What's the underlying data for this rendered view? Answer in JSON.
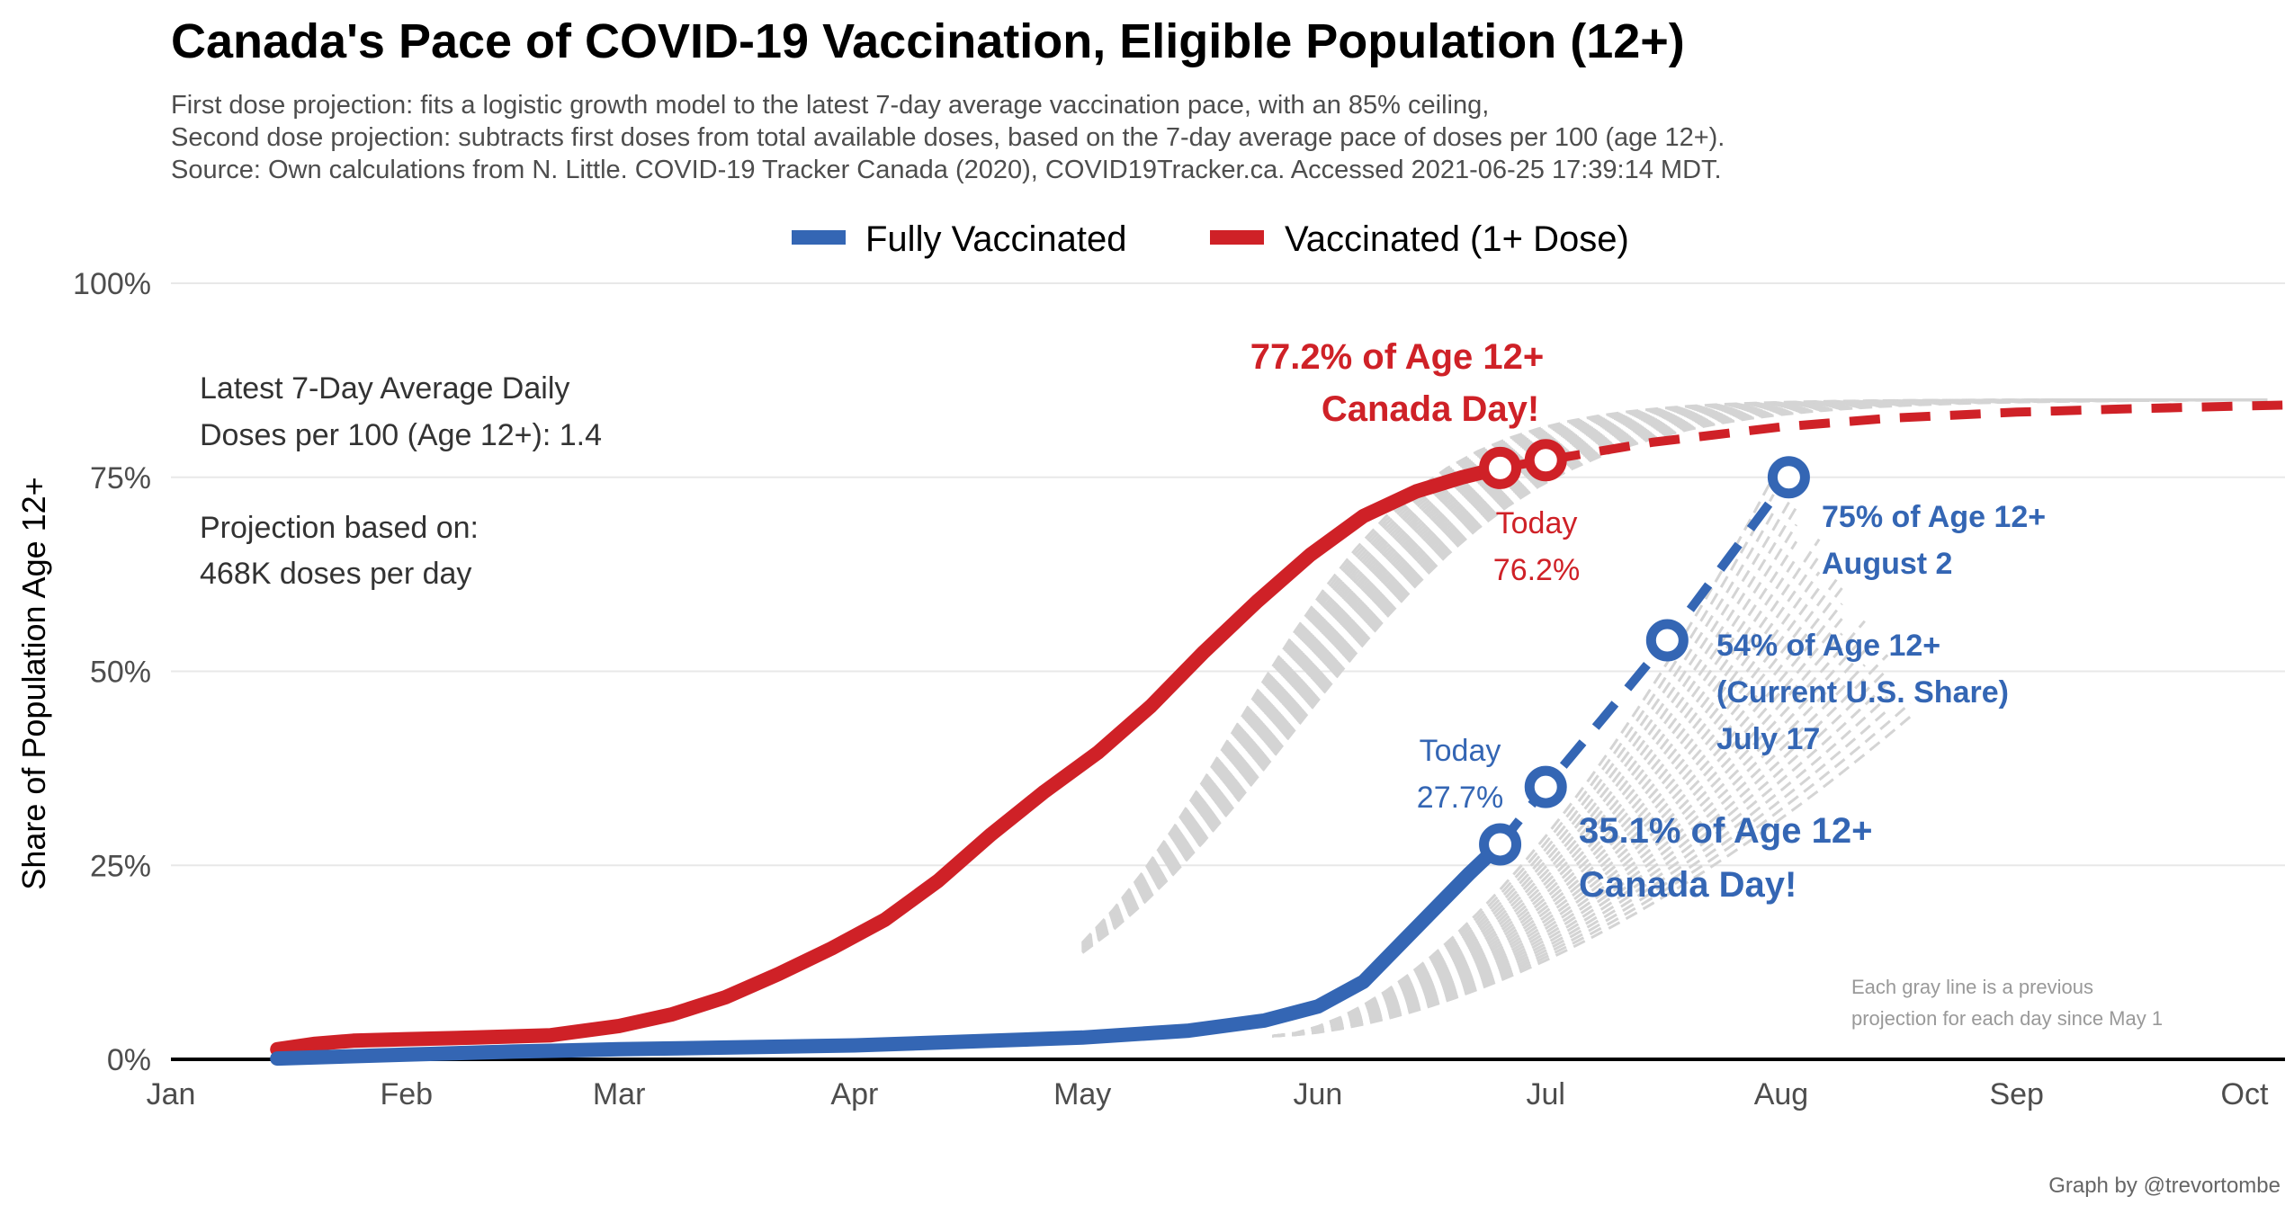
{
  "title": "Canada's Pace of COVID-19 Vaccination, Eligible Population (12+)",
  "subtitle": [
    "First dose projection: fits a logistic growth model to the latest 7-day average vaccination pace, with an 85% ceiling,",
    "Second dose projection: subtracts first doses from total available doses, based on the 7-day average pace of doses per 100 (age 12+).",
    "Source: Own calculations from N. Little. COVID-19 Tracker Canada (2020), COVID19Tracker.ca. Accessed 2021-06-25 17:39:14 MDT."
  ],
  "legend": {
    "fully": "Fully Vaccinated",
    "one_dose": "Vaccinated (1+ Dose)"
  },
  "colors": {
    "fully": "#3466b4",
    "one_dose": "#cf2127",
    "gray": "#d4d4d4",
    "grid": "#e8e8e8"
  },
  "annotations": {
    "daily_line1": "Latest 7-Day Average Daily",
    "daily_line2": "Doses per 100 (Age 12+): 1.4",
    "proj_line1": "Projection based on:",
    "proj_line2": "468K doses per day",
    "red_milestone_1": "77.2% of Age 12+",
    "red_milestone_2": "Canada Day!",
    "red_today_1": "Today",
    "red_today_2": "76.2%",
    "blue_today_1": "Today",
    "blue_today_2": "27.7%",
    "blue_canada_1": "35.1% of Age 12+",
    "blue_canada_2": "Canada Day!",
    "blue_us_1": "54% of Age 12+",
    "blue_us_2": "(Current U.S. Share)",
    "blue_us_3": "July 17",
    "blue_75_1": "75% of Age 12+",
    "blue_75_2": "August 2",
    "gray_note_1": "Each gray line is a previous",
    "gray_note_2": "projection for each day since May 1",
    "credit": "Graph by @trevortombe"
  },
  "chart_data": {
    "type": "line",
    "ylabel": "Share of Population Age 12+",
    "y_ticks": [
      "0%",
      "25%",
      "50%",
      "75%",
      "100%"
    ],
    "x_tick_labels": [
      "Jan",
      "Feb",
      "Mar",
      "Apr",
      "May",
      "Jun",
      "Jul",
      "Aug",
      "Sep",
      "Oct"
    ],
    "ylim": [
      0,
      100
    ],
    "xlim": [
      "2021-01-01",
      "2021-10-01"
    ],
    "series": [
      {
        "name": "Vaccinated (1+ Dose)",
        "style": "solid",
        "points": [
          [
            "2021-01-15",
            1.3
          ],
          [
            "2021-01-20",
            2.0
          ],
          [
            "2021-01-25",
            2.4
          ],
          [
            "2021-02-01",
            2.6
          ],
          [
            "2021-02-10",
            2.8
          ],
          [
            "2021-02-20",
            3.1
          ],
          [
            "2021-03-01",
            4.3
          ],
          [
            "2021-03-08",
            5.8
          ],
          [
            "2021-03-15",
            8.0
          ],
          [
            "2021-03-22",
            11.0
          ],
          [
            "2021-03-29",
            14.3
          ],
          [
            "2021-04-05",
            18.0
          ],
          [
            "2021-04-12",
            23.0
          ],
          [
            "2021-04-19",
            29.0
          ],
          [
            "2021-04-26",
            34.5
          ],
          [
            "2021-05-03",
            39.5
          ],
          [
            "2021-05-10",
            45.5
          ],
          [
            "2021-05-17",
            52.5
          ],
          [
            "2021-05-24",
            59.0
          ],
          [
            "2021-05-31",
            65.0
          ],
          [
            "2021-06-07",
            70.0
          ],
          [
            "2021-06-14",
            73.2
          ],
          [
            "2021-06-20",
            75.0
          ],
          [
            "2021-06-25",
            76.2
          ]
        ]
      },
      {
        "name": "Vaccinated (1+ Dose) projection",
        "style": "dashed",
        "points": [
          [
            "2021-06-25",
            76.2
          ],
          [
            "2021-07-01",
            77.2
          ],
          [
            "2021-07-15",
            79.5
          ],
          [
            "2021-08-01",
            81.5
          ],
          [
            "2021-08-15",
            82.6
          ],
          [
            "2021-09-01",
            83.4
          ],
          [
            "2021-09-15",
            83.8
          ],
          [
            "2021-10-01",
            84.2
          ],
          [
            "2021-10-06",
            84.3
          ]
        ]
      },
      {
        "name": "Fully Vaccinated",
        "style": "solid",
        "points": [
          [
            "2021-01-15",
            0.1
          ],
          [
            "2021-02-01",
            0.6
          ],
          [
            "2021-02-15",
            1.0
          ],
          [
            "2021-03-01",
            1.3
          ],
          [
            "2021-04-01",
            1.8
          ],
          [
            "2021-05-01",
            2.8
          ],
          [
            "2021-05-15",
            3.7
          ],
          [
            "2021-05-25",
            5.0
          ],
          [
            "2021-06-01",
            6.8
          ],
          [
            "2021-06-07",
            10.0
          ],
          [
            "2021-06-12",
            15.0
          ],
          [
            "2021-06-17",
            20.0
          ],
          [
            "2021-06-21",
            24.0
          ],
          [
            "2021-06-25",
            27.7
          ]
        ]
      },
      {
        "name": "Fully Vaccinated projection",
        "style": "dashed",
        "points": [
          [
            "2021-06-25",
            27.7
          ],
          [
            "2021-07-01",
            35.1
          ],
          [
            "2021-07-09",
            44.5
          ],
          [
            "2021-07-17",
            54.0
          ],
          [
            "2021-07-25",
            64.5
          ],
          [
            "2021-08-02",
            75.0
          ]
        ]
      }
    ],
    "markers": [
      {
        "series": "Vaccinated (1+ Dose)",
        "date": "2021-06-25",
        "value": 76.2
      },
      {
        "series": "Vaccinated (1+ Dose)",
        "date": "2021-07-01",
        "value": 77.2
      },
      {
        "series": "Fully Vaccinated",
        "date": "2021-06-25",
        "value": 27.7
      },
      {
        "series": "Fully Vaccinated",
        "date": "2021-07-01",
        "value": 35.1
      },
      {
        "series": "Fully Vaccinated",
        "date": "2021-07-17",
        "value": 54.0
      },
      {
        "series": "Fully Vaccinated",
        "date": "2021-08-02",
        "value": 75.0
      }
    ],
    "grid": true,
    "legend_position": "top"
  }
}
